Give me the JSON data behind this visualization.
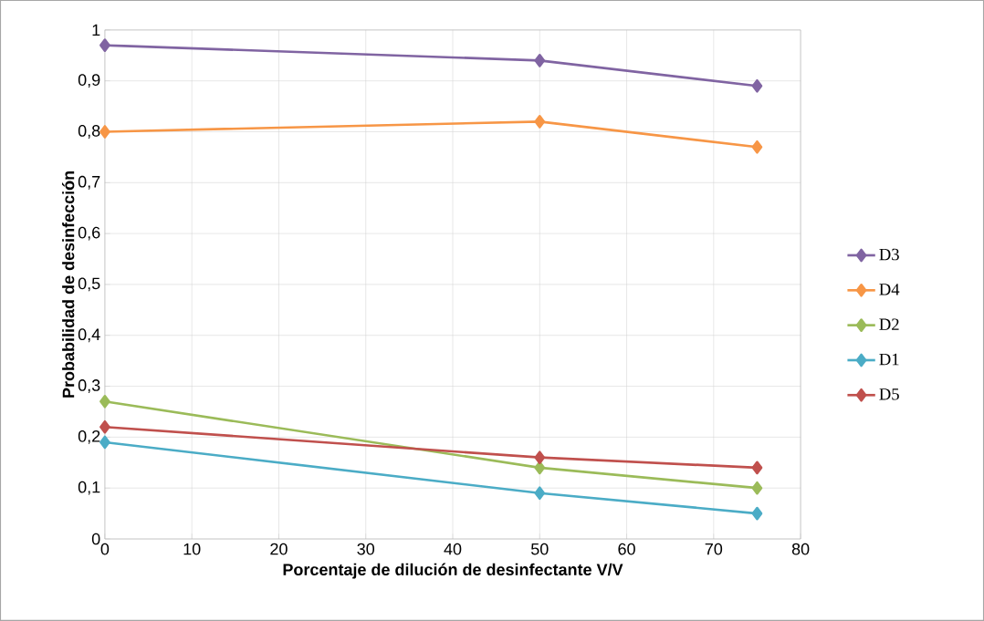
{
  "chart_data": {
    "type": "line",
    "xlabel": "Porcentaje de dilución de desinfectante V/V",
    "ylabel": "Probabilidad de desinfección",
    "x": [
      0,
      50,
      75
    ],
    "series": [
      {
        "name": "D3",
        "color": "#8064a2",
        "values": [
          0.97,
          0.94,
          0.89
        ]
      },
      {
        "name": "D4",
        "color": "#f79646",
        "values": [
          0.8,
          0.82,
          0.77
        ]
      },
      {
        "name": "D2",
        "color": "#9bbb59",
        "values": [
          0.27,
          0.14,
          0.1
        ]
      },
      {
        "name": "D1",
        "color": "#4bacc6",
        "values": [
          0.19,
          0.09,
          0.05
        ]
      },
      {
        "name": "D5",
        "color": "#c0504d",
        "values": [
          0.22,
          0.16,
          0.14
        ]
      }
    ],
    "xlim": [
      0,
      80
    ],
    "xticks": [
      0,
      10,
      20,
      30,
      40,
      50,
      60,
      70,
      80
    ],
    "ylim": [
      0,
      1
    ],
    "yticks": [
      0,
      {
        "value": 0.1,
        "label": "0,1"
      },
      {
        "value": 0.2,
        "label": "0,2"
      },
      {
        "value": 0.3,
        "label": "0,3"
      },
      {
        "value": 0.4,
        "label": "0,4"
      },
      {
        "value": 0.5,
        "label": "0,5"
      },
      {
        "value": 0.6,
        "label": "0,6"
      },
      {
        "value": 0.7,
        "label": "0,7"
      },
      {
        "value": 0.8,
        "label": "0,8"
      },
      {
        "value": 0.9,
        "label": "0,9"
      },
      1
    ],
    "grid": true,
    "legend": "right",
    "marker": "diamond",
    "line_style": "solid"
  }
}
